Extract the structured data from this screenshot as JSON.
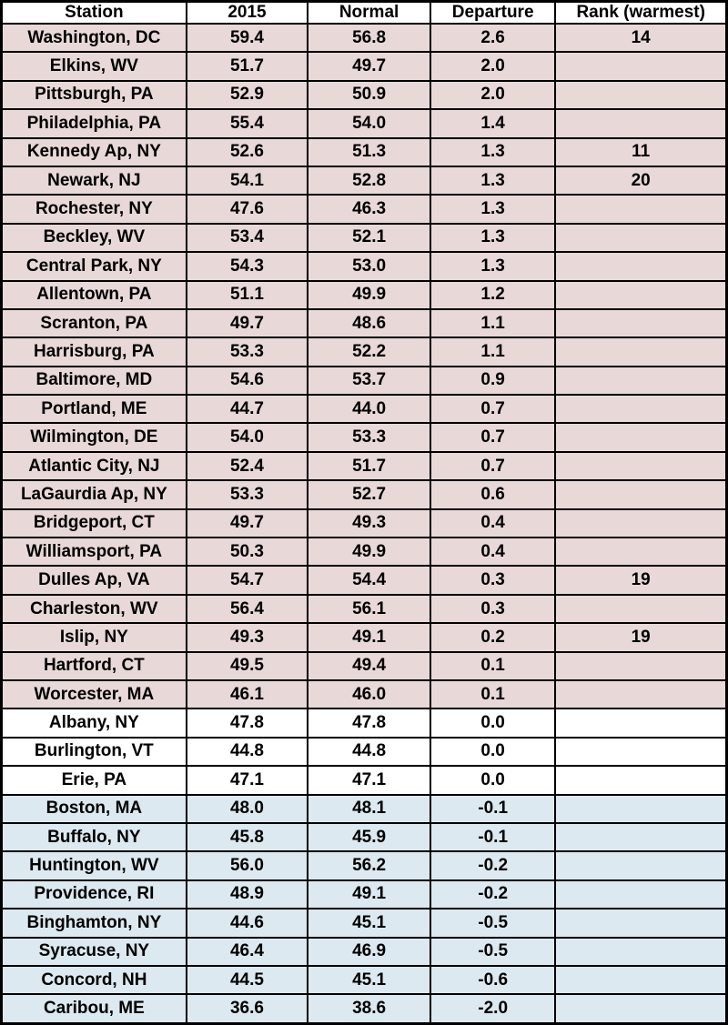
{
  "colors": {
    "above_normal_row": "#e8d9d8",
    "normal_row": "#ffffff",
    "below_normal_row": "#dde9f0",
    "border": "#000000",
    "header_background": "#ffffff",
    "text": "#000000"
  },
  "chart_data": {
    "type": "table",
    "columns": [
      "Station",
      "2015",
      "Normal",
      "Departure",
      "Rank (warmest)"
    ],
    "column_keys": [
      "station",
      "temp_2015",
      "normal",
      "departure",
      "rank"
    ],
    "row_color_semantics": {
      "above_normal_row": "positive departure (warmer than normal)",
      "normal_row": "zero departure (equal to normal)",
      "below_normal_row": "negative departure (cooler than normal)"
    },
    "rows": [
      {
        "station": "Washington, DC",
        "temp_2015": "59.4",
        "normal": "56.8",
        "departure": "2.6",
        "rank": "14",
        "group": "above_normal_row"
      },
      {
        "station": "Elkins, WV",
        "temp_2015": "51.7",
        "normal": "49.7",
        "departure": "2.0",
        "rank": "",
        "group": "above_normal_row"
      },
      {
        "station": "Pittsburgh, PA",
        "temp_2015": "52.9",
        "normal": "50.9",
        "departure": "2.0",
        "rank": "",
        "group": "above_normal_row"
      },
      {
        "station": "Philadelphia, PA",
        "temp_2015": "55.4",
        "normal": "54.0",
        "departure": "1.4",
        "rank": "",
        "group": "above_normal_row"
      },
      {
        "station": "Kennedy Ap, NY",
        "temp_2015": "52.6",
        "normal": "51.3",
        "departure": "1.3",
        "rank": "11",
        "group": "above_normal_row"
      },
      {
        "station": "Newark, NJ",
        "temp_2015": "54.1",
        "normal": "52.8",
        "departure": "1.3",
        "rank": "20",
        "group": "above_normal_row"
      },
      {
        "station": "Rochester, NY",
        "temp_2015": "47.6",
        "normal": "46.3",
        "departure": "1.3",
        "rank": "",
        "group": "above_normal_row"
      },
      {
        "station": "Beckley, WV",
        "temp_2015": "53.4",
        "normal": "52.1",
        "departure": "1.3",
        "rank": "",
        "group": "above_normal_row"
      },
      {
        "station": "Central Park, NY",
        "temp_2015": "54.3",
        "normal": "53.0",
        "departure": "1.3",
        "rank": "",
        "group": "above_normal_row"
      },
      {
        "station": "Allentown, PA",
        "temp_2015": "51.1",
        "normal": "49.9",
        "departure": "1.2",
        "rank": "",
        "group": "above_normal_row"
      },
      {
        "station": "Scranton, PA",
        "temp_2015": "49.7",
        "normal": "48.6",
        "departure": "1.1",
        "rank": "",
        "group": "above_normal_row"
      },
      {
        "station": "Harrisburg, PA",
        "temp_2015": "53.3",
        "normal": "52.2",
        "departure": "1.1",
        "rank": "",
        "group": "above_normal_row"
      },
      {
        "station": "Baltimore, MD",
        "temp_2015": "54.6",
        "normal": "53.7",
        "departure": "0.9",
        "rank": "",
        "group": "above_normal_row"
      },
      {
        "station": "Portland, ME",
        "temp_2015": "44.7",
        "normal": "44.0",
        "departure": "0.7",
        "rank": "",
        "group": "above_normal_row"
      },
      {
        "station": "Wilmington, DE",
        "temp_2015": "54.0",
        "normal": "53.3",
        "departure": "0.7",
        "rank": "",
        "group": "above_normal_row"
      },
      {
        "station": "Atlantic City, NJ",
        "temp_2015": "52.4",
        "normal": "51.7",
        "departure": "0.7",
        "rank": "",
        "group": "above_normal_row"
      },
      {
        "station": "LaGaurdia Ap, NY",
        "temp_2015": "53.3",
        "normal": "52.7",
        "departure": "0.6",
        "rank": "",
        "group": "above_normal_row"
      },
      {
        "station": "Bridgeport, CT",
        "temp_2015": "49.7",
        "normal": "49.3",
        "departure": "0.4",
        "rank": "",
        "group": "above_normal_row"
      },
      {
        "station": "Williamsport, PA",
        "temp_2015": "50.3",
        "normal": "49.9",
        "departure": "0.4",
        "rank": "",
        "group": "above_normal_row"
      },
      {
        "station": "Dulles Ap, VA",
        "temp_2015": "54.7",
        "normal": "54.4",
        "departure": "0.3",
        "rank": "19",
        "group": "above_normal_row"
      },
      {
        "station": "Charleston, WV",
        "temp_2015": "56.4",
        "normal": "56.1",
        "departure": "0.3",
        "rank": "",
        "group": "above_normal_row"
      },
      {
        "station": "Islip, NY",
        "temp_2015": "49.3",
        "normal": "49.1",
        "departure": "0.2",
        "rank": "19",
        "group": "above_normal_row"
      },
      {
        "station": "Hartford, CT",
        "temp_2015": "49.5",
        "normal": "49.4",
        "departure": "0.1",
        "rank": "",
        "group": "above_normal_row"
      },
      {
        "station": "Worcester, MA",
        "temp_2015": "46.1",
        "normal": "46.0",
        "departure": "0.1",
        "rank": "",
        "group": "above_normal_row"
      },
      {
        "station": "Albany, NY",
        "temp_2015": "47.8",
        "normal": "47.8",
        "departure": "0.0",
        "rank": "",
        "group": "normal_row"
      },
      {
        "station": "Burlington, VT",
        "temp_2015": "44.8",
        "normal": "44.8",
        "departure": "0.0",
        "rank": "",
        "group": "normal_row"
      },
      {
        "station": "Erie, PA",
        "temp_2015": "47.1",
        "normal": "47.1",
        "departure": "0.0",
        "rank": "",
        "group": "normal_row"
      },
      {
        "station": "Boston, MA",
        "temp_2015": "48.0",
        "normal": "48.1",
        "departure": "-0.1",
        "rank": "",
        "group": "below_normal_row"
      },
      {
        "station": "Buffalo, NY",
        "temp_2015": "45.8",
        "normal": "45.9",
        "departure": "-0.1",
        "rank": "",
        "group": "below_normal_row"
      },
      {
        "station": "Huntington, WV",
        "temp_2015": "56.0",
        "normal": "56.2",
        "departure": "-0.2",
        "rank": "",
        "group": "below_normal_row"
      },
      {
        "station": "Providence, RI",
        "temp_2015": "48.9",
        "normal": "49.1",
        "departure": "-0.2",
        "rank": "",
        "group": "below_normal_row"
      },
      {
        "station": "Binghamton, NY",
        "temp_2015": "44.6",
        "normal": "45.1",
        "departure": "-0.5",
        "rank": "",
        "group": "below_normal_row"
      },
      {
        "station": "Syracuse, NY",
        "temp_2015": "46.4",
        "normal": "46.9",
        "departure": "-0.5",
        "rank": "",
        "group": "below_normal_row"
      },
      {
        "station": "Concord, NH",
        "temp_2015": "44.5",
        "normal": "45.1",
        "departure": "-0.6",
        "rank": "",
        "group": "below_normal_row"
      },
      {
        "station": "Caribou, ME",
        "temp_2015": "36.6",
        "normal": "38.6",
        "departure": "-2.0",
        "rank": "",
        "group": "below_normal_row"
      }
    ]
  }
}
